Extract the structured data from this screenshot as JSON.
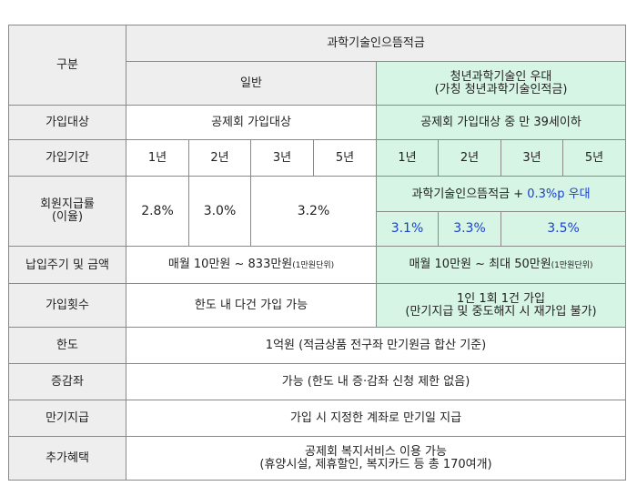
{
  "colors": {
    "header_bg": "#eeeeee",
    "youth_bg": "#d6f5e4",
    "highlight_text": "#1a3fd1",
    "border": "#8a8a8a"
  },
  "header": {
    "category_label": "구분",
    "product_title": "과학기술인으뜸적금",
    "general_label": "일반",
    "youth_line1": "청년과학기술인 우대",
    "youth_line2": "(가칭 청년과학기술인적금)"
  },
  "rows": {
    "eligibility": {
      "label": "가입대상",
      "general": "공제회 가입대상",
      "youth": "공제회 가입대상 중 만 39세이하"
    },
    "period": {
      "label": "가입기간",
      "general": [
        "1년",
        "2년",
        "3년",
        "5년"
      ],
      "youth": [
        "1년",
        "2년",
        "3년",
        "5년"
      ]
    },
    "rate": {
      "label_line1": "회원지급률",
      "label_line2": "(이율)",
      "general": [
        "2.8%",
        "3.0%",
        "3.2%"
      ],
      "youth_note_prefix": "과학기술인으뜸적금 + ",
      "youth_note_bonus": "0.3%p 우대",
      "youth": [
        "3.1%",
        "3.3%",
        "3.5%"
      ]
    },
    "payment": {
      "label": "납입주기 및 금액",
      "general": "매월 10만원 ~ 833만원",
      "general_unit": "(1만원단위)",
      "youth": "매월 10만원 ~ 최대 50만원",
      "youth_unit": "(1만원단위)"
    },
    "count": {
      "label": "가입횟수",
      "general": "한도 내 다건 가입 가능",
      "youth_line1": "1인 1회 1건 가입",
      "youth_line2": "(만기지급 및 중도해지 시 재가입 불가)"
    },
    "limit": {
      "label": "한도",
      "value": "1억원 (적금상품 전구좌 만기원금 합산 기준)"
    },
    "adjust": {
      "label": "증감좌",
      "value": "가능 (한도 내 증·감좌 신청 제한 없음)"
    },
    "maturity": {
      "label": "만기지급",
      "value": "가입 시 지정한 계좌로 만기일 지급"
    },
    "benefit": {
      "label": "추가혜택",
      "line1": "공제회 복지서비스 이용 가능",
      "line2": "(휴양시설, 제휴할인, 복지카드 등 총 170여개)"
    }
  }
}
